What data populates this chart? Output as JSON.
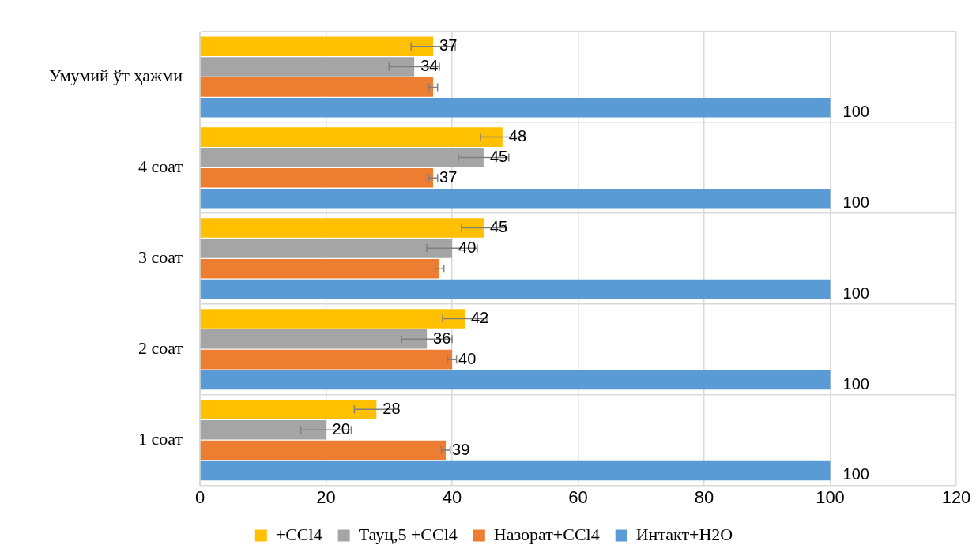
{
  "chart_data": {
    "type": "bar",
    "orientation": "horizontal",
    "categories": [
      "Умумий ўт ҳажми",
      "4 соат",
      "3 соат",
      "2 соат",
      "1 соат"
    ],
    "series": [
      {
        "name": "+CCl4",
        "color": "#ffc000",
        "values": [
          37,
          48,
          45,
          42,
          28
        ],
        "errors": [
          3.5,
          3.5,
          3.5,
          3.5,
          3.5
        ],
        "value_labels": [
          "37",
          "48",
          "45",
          "42",
          "28"
        ]
      },
      {
        "name": "Тауц,5 +CCl4",
        "color": "#a5a5a5",
        "values": [
          34,
          45,
          40,
          36,
          20
        ],
        "errors": [
          4,
          4,
          4,
          4,
          4
        ],
        "value_labels": [
          "34",
          "45",
          "40",
          "36",
          "20"
        ]
      },
      {
        "name": "Назорат+CCl4",
        "color": "#ed7d31",
        "values": [
          37,
          37,
          38,
          40,
          39
        ],
        "errors": [
          0.7,
          0.7,
          0.7,
          0.7,
          0.7
        ],
        "value_labels": [
          null,
          "37",
          null,
          "40",
          "39"
        ]
      },
      {
        "name": "Интакт+H2O",
        "color": "#5b9bd5",
        "values": [
          100,
          100,
          100,
          100,
          100
        ],
        "value_labels": [
          "100",
          "100",
          "100",
          "100",
          "100"
        ]
      }
    ],
    "xlim": [
      0,
      120
    ],
    "xticks": [
      0,
      20,
      40,
      60,
      80,
      100,
      120
    ],
    "grid": true,
    "legend": "bottom"
  }
}
